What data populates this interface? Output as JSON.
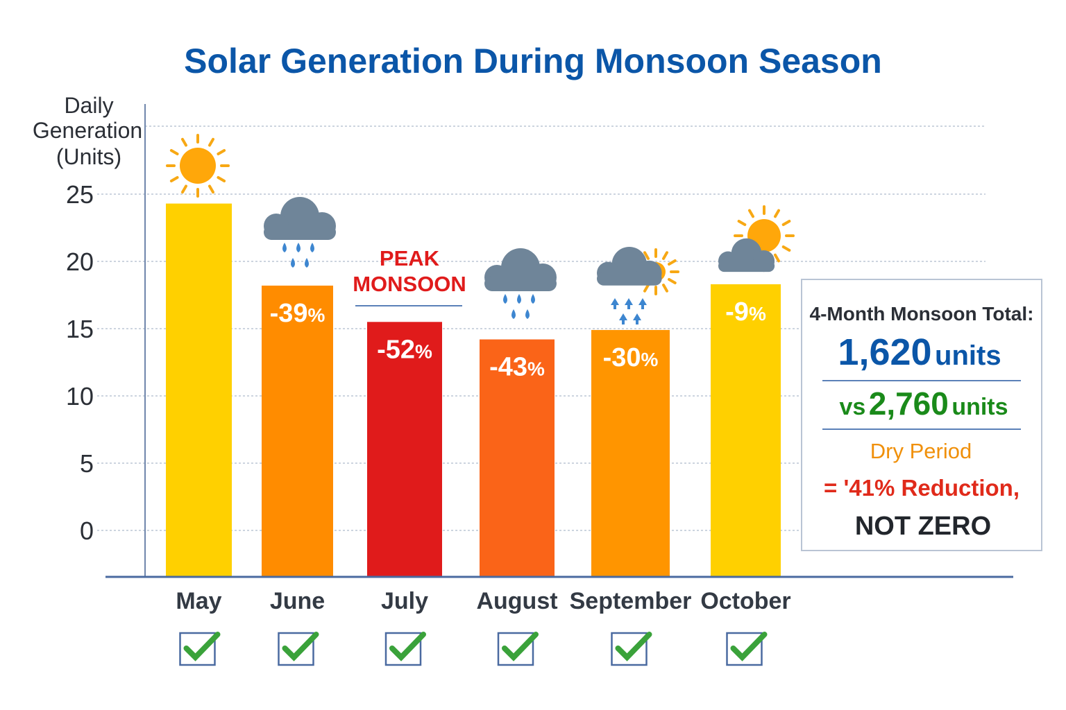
{
  "chart_data": {
    "type": "bar",
    "title": "Solar Generation During Monsoon Season",
    "ylabel": [
      "Daily",
      "Generation",
      "(Units)"
    ],
    "ylim": [
      0,
      25
    ],
    "yticks": [
      "0",
      "5",
      "10",
      "15",
      "20",
      "25"
    ],
    "grid": true,
    "categories": [
      "May",
      "June",
      "July",
      "August",
      "September",
      "October"
    ],
    "values": [
      24.3,
      18.2,
      15.5,
      14.2,
      14.9,
      18.3
    ],
    "data_labels": [
      "",
      "-39%",
      "-52%",
      "-43%",
      "-30%",
      "-9%"
    ],
    "bar_colors": [
      "#FFD000",
      "#FF8C00",
      "#E01B1B",
      "#FA6418",
      "#FF9500",
      "#FFD000"
    ],
    "weather_icons": [
      "sun-icon",
      "rain-cloud-icon",
      "",
      "rain-cloud-icon",
      "cloud-sun-rain-icon",
      "sun-behind-cloud-icon"
    ],
    "annotations": {
      "peak": [
        "PEAK",
        "MONSOON"
      ],
      "summary": {
        "heading": "4-Month Monsoon Total:",
        "total_number": "1,620",
        "total_unit": "units",
        "compare_prefix": "vs",
        "compare_number": "2,760",
        "compare_unit": "units",
        "dry_period": "Dry Period",
        "reduction": "= '41% Reduction,",
        "not_zero": "NOT ZERO"
      }
    },
    "checkmarks": [
      true,
      true,
      true,
      true,
      true,
      true
    ],
    "colors": {
      "title": "#0b56a8",
      "total": "#0b56a8",
      "compare": "#1a8a1a",
      "dry": "#f0900a",
      "reduction": "#e02a1a",
      "check": "#3aa23a"
    }
  }
}
